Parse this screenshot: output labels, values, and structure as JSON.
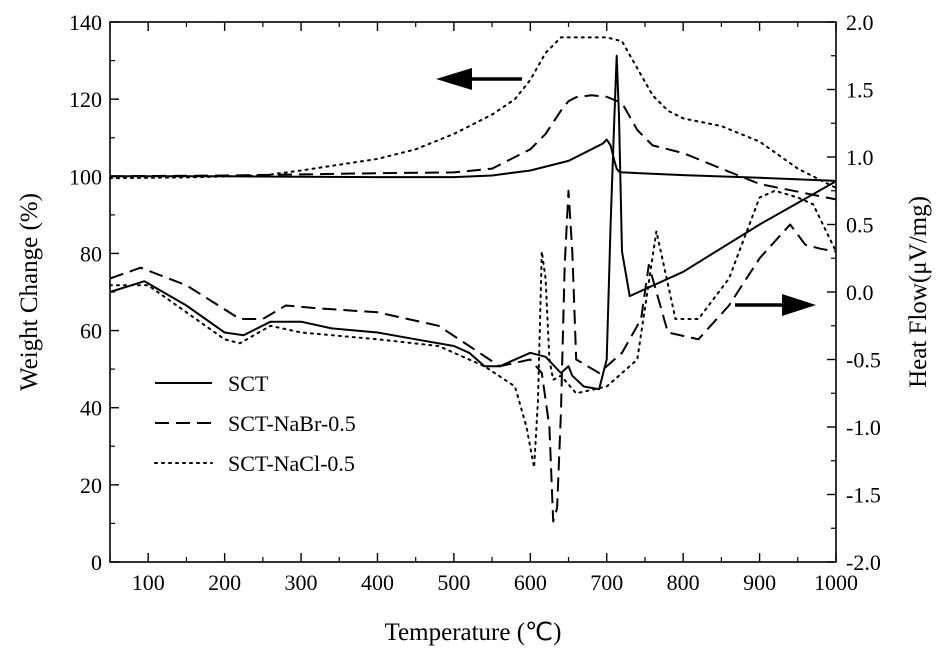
{
  "chart_data": {
    "type": "line",
    "x_axis": {
      "label": "Temperature (℃)",
      "range": [
        50,
        1000
      ],
      "ticks": [
        100,
        200,
        300,
        400,
        500,
        600,
        700,
        800,
        900,
        1000
      ]
    },
    "y_axis_left": {
      "label": "Weight Change (%)",
      "range": [
        0,
        140
      ],
      "ticks": [
        0,
        20,
        40,
        60,
        80,
        100,
        120,
        140
      ]
    },
    "y_axis_right": {
      "label": "Heat Flow(μV/mg)",
      "range": [
        -2.0,
        2.0
      ],
      "ticks": [
        "-2.0",
        "-1.5",
        "-1.0",
        "-0.5",
        "0.0",
        "0.5",
        "1.0",
        "1.5",
        "2.0"
      ]
    },
    "legend": {
      "position": "bottom-left",
      "entries": [
        "SCT",
        "SCT-NaBr-0.5",
        "SCT-NaCl-0.5"
      ]
    },
    "annotations": [
      {
        "type": "arrow",
        "direction": "left",
        "meaning": "TG curves read on left axis"
      },
      {
        "type": "arrow",
        "direction": "right",
        "meaning": "DTA curves read on right axis"
      }
    ],
    "series": [
      {
        "name": "SCT",
        "kind": "TG",
        "axis": "left",
        "style": "solid",
        "x": [
          50,
          200,
          400,
          500,
          550,
          600,
          650,
          680,
          695,
          700,
          705,
          710,
          713,
          716,
          720,
          800,
          900,
          1000
        ],
        "y": [
          100,
          100,
          99.8,
          99.8,
          100.2,
          101.5,
          104,
          107,
          108.5,
          109.5,
          108,
          104,
          102,
          101.2,
          101,
          100.3,
          99.6,
          98.8
        ]
      },
      {
        "name": "SCT-NaBr-0.5",
        "kind": "TG",
        "axis": "left",
        "style": "dashed",
        "x": [
          50,
          200,
          300,
          400,
          500,
          550,
          600,
          620,
          640,
          650,
          660,
          680,
          700,
          720,
          740,
          760,
          800,
          850,
          900,
          950,
          1000
        ],
        "y": [
          100,
          100.2,
          100.5,
          100.8,
          101,
          102,
          107,
          111,
          117,
          119.5,
          120.5,
          121,
          120.6,
          119,
          112,
          108,
          106,
          102,
          98,
          96,
          94
        ]
      },
      {
        "name": "SCT-NaCl-0.5",
        "kind": "TG",
        "axis": "left",
        "style": "dotted",
        "x": [
          50,
          150,
          250,
          300,
          350,
          400,
          450,
          500,
          550,
          580,
          600,
          620,
          640,
          660,
          700,
          720,
          740,
          760,
          780,
          800,
          850,
          900,
          950,
          1000
        ],
        "y": [
          99.5,
          99.7,
          100.2,
          101.5,
          103,
          104.5,
          107,
          111,
          116,
          120,
          125,
          132,
          136,
          136,
          136,
          135,
          128,
          121,
          117,
          115,
          113,
          109,
          102,
          97
        ]
      },
      {
        "name": "SCT",
        "kind": "DTA",
        "axis": "right",
        "style": "solid",
        "x": [
          50,
          95,
          150,
          200,
          225,
          260,
          300,
          340,
          400,
          450,
          500,
          520,
          540,
          560,
          600,
          620,
          640,
          650,
          655,
          670,
          690,
          700,
          705,
          710,
          713,
          716,
          720,
          730,
          800,
          900,
          1000
        ],
        "y": [
          0.0,
          0.08,
          -0.1,
          -0.3,
          -0.32,
          -0.22,
          -0.22,
          -0.27,
          -0.3,
          -0.35,
          -0.4,
          -0.45,
          -0.55,
          -0.55,
          -0.45,
          -0.48,
          -0.6,
          -0.55,
          -0.62,
          -0.7,
          -0.72,
          -0.5,
          0.5,
          1.3,
          1.75,
          1.3,
          0.3,
          -0.03,
          0.15,
          0.5,
          0.82
        ]
      },
      {
        "name": "SCT-NaBr-0.5",
        "kind": "DTA",
        "axis": "right",
        "style": "dashed",
        "x": [
          50,
          90,
          150,
          220,
          250,
          280,
          320,
          400,
          480,
          520,
          560,
          600,
          615,
          625,
          630,
          635,
          640,
          645,
          650,
          655,
          660,
          690,
          720,
          745,
          755,
          780,
          820,
          860,
          900,
          940,
          960,
          980,
          1000
        ],
        "y": [
          0.1,
          0.18,
          0.05,
          -0.2,
          -0.2,
          -0.1,
          -0.12,
          -0.15,
          -0.25,
          -0.4,
          -0.55,
          -0.5,
          -0.6,
          -1.0,
          -1.7,
          -1.6,
          -0.9,
          0.2,
          0.75,
          0.3,
          -0.5,
          -0.6,
          -0.45,
          -0.2,
          0.2,
          -0.3,
          -0.35,
          -0.1,
          0.25,
          0.5,
          0.35,
          0.32,
          0.3
        ]
      },
      {
        "name": "SCT-NaCl-0.5",
        "kind": "DTA",
        "axis": "right",
        "style": "dotted",
        "x": [
          50,
          100,
          150,
          200,
          220,
          260,
          300,
          400,
          480,
          540,
          580,
          595,
          605,
          610,
          615,
          620,
          625,
          630,
          640,
          660,
          700,
          740,
          765,
          790,
          820,
          860,
          900,
          920,
          950,
          970,
          1000
        ],
        "y": [
          0.05,
          0.05,
          -0.15,
          -0.35,
          -0.38,
          -0.25,
          -0.3,
          -0.35,
          -0.4,
          -0.55,
          -0.7,
          -1.0,
          -1.3,
          -0.8,
          0.3,
          0.1,
          -0.5,
          -0.65,
          -0.62,
          -0.75,
          -0.7,
          -0.5,
          0.45,
          -0.2,
          -0.2,
          0.1,
          0.7,
          0.75,
          0.7,
          0.65,
          0.3
        ]
      }
    ]
  }
}
